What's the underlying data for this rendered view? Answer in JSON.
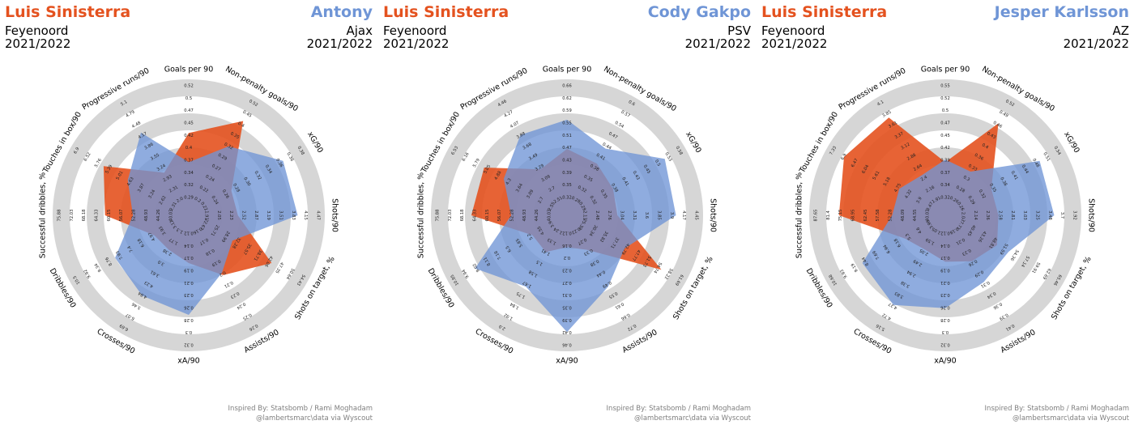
{
  "colors": {
    "player1": "#e4521f",
    "player2": "#6f95d6",
    "ring": "#d6d6d6"
  },
  "credits": {
    "line1": "Inspired By: Statsbomb / Rami Moghadam",
    "line2": "@lambertsmarc\\data via Wyscout"
  },
  "panels": [
    {
      "player1": {
        "name": "Luis Sinisterra",
        "team": "Feyenoord",
        "season": "2021/2022"
      },
      "player2": {
        "name": "Antony",
        "team": "Ajax",
        "season": "2021/2022"
      }
    },
    {
      "player1": {
        "name": "Luis Sinisterra",
        "team": "Feyenoord",
        "season": "2021/2022"
      },
      "player2": {
        "name": "Cody Gakpo",
        "team": "PSV",
        "season": "2021/2022"
      }
    },
    {
      "player1": {
        "name": "Luis Sinisterra",
        "team": "Feyenoord",
        "season": "2021/2022"
      },
      "player2": {
        "name": "Jesper Karlsson",
        "team": "AZ",
        "season": "2021/2022"
      }
    }
  ],
  "chart_data": [
    {
      "type": "radar",
      "metrics": [
        "Goals per 90",
        "Non-penalty goals/90",
        "xG/90",
        "Shots/90",
        "Shots on target, %",
        "Assists/90",
        "xA/90",
        "Crosses/90",
        "Dribbles/90",
        "Successful dribbles, %",
        "Touches in box/90",
        "Progressive runs/90"
      ],
      "tick_labels": [
        [
          "0.29",
          "0.32",
          "0.34",
          "0.37",
          "0.4",
          "0.42",
          "0.45",
          "0.47",
          "0.5",
          "0.52"
        ],
        [
          "0.2",
          "0.22",
          "0.24",
          "0.27",
          "0.29",
          "0.32",
          "0.35",
          "0.4",
          "0.45",
          "0.52"
        ],
        [
          "0.22",
          "0.24",
          "0.26",
          "0.28",
          "0.30",
          "0.32",
          "0.34",
          "0.36",
          "0.38",
          "0.38"
        ],
        [
          "1.91",
          "2.05",
          "2.23",
          "2.52",
          "2.87",
          "3.19",
          "3.51",
          "3.83",
          "4.15",
          "4.47"
        ],
        [
          "22.67",
          "25.71",
          "28.99",
          "32.28",
          "35.57",
          "38.71",
          "42.06",
          "47.35",
          "50.64",
          "54.43"
        ],
        [
          "0.16",
          "0.17",
          "0.18",
          "0.19",
          "0.2",
          "0.21",
          "0.23",
          "0.24",
          "0.25",
          "0.26"
        ],
        [
          "0.12",
          "0.14",
          "0.17",
          "0.19",
          "0.21",
          "0.23",
          "0.26",
          "0.28",
          "0.3",
          "0.32"
        ],
        [
          "1.3",
          "1.77",
          "2.38",
          "3.0",
          "3.61",
          "4.23",
          "4.84",
          "5.46",
          "6.07",
          "6.69"
        ],
        [
          "3.12",
          "3.93",
          "4.97",
          "6.18",
          "7.4",
          "7.93",
          "8.76",
          "9.34",
          "9.92",
          "10.5"
        ],
        [
          "40.03",
          "44.26",
          "48.93",
          "52.28",
          "56.07",
          "60.15",
          "64.33",
          "68.18",
          "72.03",
          "75.88"
        ],
        [
          "2.31",
          "2.62",
          "3.24",
          "3.87",
          "4.63",
          "5.01",
          "5.39",
          "5.76",
          "6.52",
          "6.9"
        ],
        [
          "2.0",
          "2.31",
          "2.93",
          "3.24",
          "3.55",
          "3.86",
          "4.17",
          "4.48",
          "4.79",
          "5.1"
        ]
      ],
      "series": [
        {
          "name": "Luis Sinisterra",
          "values": [
            0.62,
            0.82,
            0.37,
            0.37,
            0.72,
            0.52,
            0.36,
            0.3,
            0.3,
            0.63,
            0.74,
            0.37
          ]
        },
        {
          "name": "Antony",
          "values": [
            0.4,
            0.6,
            0.82,
            0.82,
            0.38,
            0.5,
            0.75,
            0.7,
            0.64,
            0.42,
            0.53,
            0.72
          ]
        }
      ]
    },
    {
      "type": "radar",
      "metrics": [
        "Goals per 90",
        "Non-penalty goals/90",
        "xG/90",
        "Shots/90",
        "Shots on target, %",
        "Assists/90",
        "xA/90",
        "Crosses/90",
        "Dribbles/90",
        "Successful dribbles, %",
        "Touches in box/90",
        "Progressive runs/90"
      ],
      "tick_labels": [
        [
          "0.32",
          "0.35",
          "0.39",
          "0.43",
          "0.47",
          "0.51",
          "0.55",
          "0.59",
          "0.62",
          "0.66"
        ],
        [
          "0.28",
          "0.32",
          "0.35",
          "0.38",
          "0.41",
          "0.44",
          "0.47",
          "0.54",
          "0.57",
          "0.6"
        ],
        [
          "0.29",
          "0.32",
          "0.35",
          "0.38",
          "0.41",
          "0.43",
          "0.45",
          "0.5",
          "0.53",
          "0.58"
        ],
        [
          "2.13",
          "2.48",
          "2.76",
          "3.04",
          "3.31",
          "3.6",
          "3.85",
          "3.9",
          "4.17",
          "4.45"
        ],
        [
          "25.38",
          "30.34",
          "35.82",
          "37.71",
          "42.79",
          "47.77",
          "51.73",
          "54.74",
          "58.22",
          "61.69"
        ],
        [
          "0.22",
          "0.27",
          "0.33",
          "0.38",
          "0.44",
          "0.49",
          "0.55",
          "0.61",
          "0.66",
          "0.72"
        ],
        [
          "0.12",
          "0.16",
          "0.2",
          "0.23",
          "0.27",
          "0.31",
          "0.35",
          "0.39",
          "0.42",
          "0.46"
        ],
        [
          "1.24",
          "1.33",
          "1.41",
          "1.5",
          "1.58",
          "1.67",
          "1.75",
          "1.84",
          "1.92",
          "2.0"
        ],
        [
          "3.9",
          "4.55",
          "5.2",
          "5.85",
          "6.5",
          "7.18",
          "8.11",
          "9.02",
          "9.94",
          "10.85"
        ],
        [
          "40.03",
          "44.26",
          "48.93",
          "52.28",
          "56.07",
          "60.15",
          "64.33",
          "68.18",
          "72.03",
          "75.88"
        ],
        [
          "2.55",
          "2.7",
          "3.09",
          "3.64",
          "4.3",
          "4.88",
          "5.05",
          "5.79",
          "6.16",
          "6.53"
        ],
        [
          "2.51",
          "2.7",
          "3.09",
          "3.29",
          "3.49",
          "3.68",
          "3.88",
          "4.07",
          "4.27",
          "4.46"
        ]
      ],
      "series": [
        {
          "name": "Luis Sinisterra",
          "values": [
            0.5,
            0.45,
            0.4,
            0.38,
            0.82,
            0.3,
            0.24,
            0.32,
            0.3,
            0.72,
            0.72,
            0.4
          ]
        },
        {
          "name": "Cody Gakpo",
          "values": [
            0.72,
            0.58,
            0.85,
            0.82,
            0.5,
            0.62,
            0.88,
            0.62,
            0.8,
            0.42,
            0.55,
            0.7
          ]
        }
      ]
    },
    {
      "type": "radar",
      "metrics": [
        "Goals per 90",
        "Non-penalty goals/90",
        "xG/90",
        "Shots/90",
        "Shots on target, %",
        "Assists/90",
        "xA/90",
        "Crosses/90",
        "Dribbles/90",
        "Successful dribbles, %",
        "Touches in box/90",
        "Progressive runs/90"
      ],
      "tick_labels": [
        [
          "0.32",
          "0.34",
          "0.37",
          "0.39",
          "0.42",
          "0.45",
          "0.47",
          "0.5",
          "0.52",
          "0.55"
        ],
        [
          "0.26",
          "0.28",
          "0.3",
          "0.33",
          "0.36",
          "0.4",
          "0.43",
          "0.46",
          "0.49",
          "0.52"
        ],
        [
          "0.26",
          "0.29",
          "0.32",
          "0.35",
          "0.38",
          "0.41",
          "0.44",
          "0.48",
          "0.51",
          "0.54"
        ],
        [
          "2.0",
          "2.14",
          "2.36",
          "2.58",
          "2.81",
          "3.03",
          "3.25",
          "3.48",
          "3.7",
          "3.92"
        ],
        [
          "37.71",
          "40.45",
          "43.26",
          "48.81",
          "51.59",
          "54.36",
          "57.14",
          "59.91",
          "62.69",
          "65.46"
        ],
        [
          "0.18",
          "0.21",
          "0.23",
          "0.26",
          "0.29",
          "0.31",
          "0.34",
          "0.36",
          "0.39",
          "0.41"
        ],
        [
          "0.12",
          "0.14",
          "0.17",
          "0.19",
          "0.21",
          "0.23",
          "0.26",
          "0.28",
          "0.3",
          "0.32"
        ],
        [
          "1.05",
          "1.59",
          "2.05",
          "2.49",
          "2.94",
          "3.38",
          "3.83",
          "4.27",
          "4.72",
          "5.16"
        ],
        [
          "3.98",
          "4.6",
          "5.3",
          "6.18",
          "6.94",
          "7.69",
          "8.44",
          "9.19",
          "9.93",
          "10.68"
        ],
        [
          "40.03",
          "44.55",
          "48.09",
          "52.28",
          "57.58",
          "62.45",
          "68.95",
          "75.15",
          "81.4",
          "87.65"
        ],
        [
          "3.47",
          "3.9",
          "4.32",
          "4.75",
          "5.18",
          "5.61",
          "6.04",
          "6.47",
          "6.9",
          "7.33"
        ],
        [
          "1.91",
          "2.16",
          "2.4",
          "2.64",
          "2.88",
          "3.12",
          "3.37",
          "3.61",
          "3.85",
          "4.1"
        ]
      ],
      "series": [
        {
          "name": "Luis Sinisterra",
          "values": [
            0.4,
            0.8,
            0.4,
            0.4,
            0.45,
            0.4,
            0.35,
            0.3,
            0.35,
            0.8,
            0.88,
            0.85
          ]
        },
        {
          "name": "Jesper Karlsson",
          "values": [
            0.42,
            0.38,
            0.82,
            0.82,
            0.55,
            0.58,
            0.7,
            0.78,
            0.72,
            0.4,
            0.4,
            0.35
          ]
        }
      ]
    }
  ]
}
